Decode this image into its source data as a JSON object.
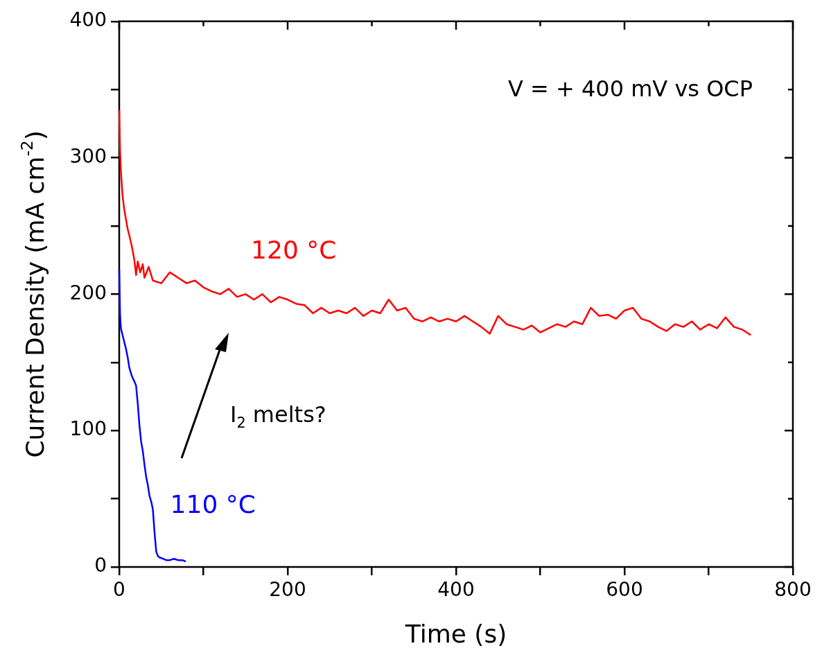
{
  "chart_data": {
    "type": "line",
    "xlabel": "Time (s)",
    "ylabel": "Current Density (mA cm$^{-2}$)",
    "xlim": [
      0,
      800
    ],
    "ylim": [
      0,
      400
    ],
    "xticks": [
      0,
      {
        "value": 100,
        "label": null
      },
      200,
      {
        "value": 300,
        "label": null
      },
      400,
      {
        "value": 500,
        "label": null
      },
      600,
      {
        "value": 700,
        "label": null
      },
      800
    ],
    "yticks": [
      0,
      {
        "value": 50,
        "label": null
      },
      100,
      {
        "value": 150,
        "label": null
      },
      200,
      {
        "value": 250,
        "label": null
      },
      300,
      {
        "value": 350,
        "label": null
      },
      400
    ],
    "grid": false,
    "legend": false,
    "marker": "none",
    "line_style": "solid",
    "series": [
      {
        "name": "120 °C",
        "color": "#ff0000",
        "x": [
          0,
          1,
          2,
          4,
          6,
          8,
          10,
          12,
          15,
          18,
          20,
          22,
          25,
          28,
          30,
          35,
          40,
          50,
          60,
          70,
          80,
          90,
          100,
          110,
          120,
          130,
          140,
          150,
          160,
          170,
          180,
          190,
          200,
          210,
          220,
          230,
          240,
          250,
          260,
          270,
          280,
          290,
          300,
          310,
          320,
          330,
          340,
          350,
          360,
          370,
          380,
          390,
          400,
          410,
          420,
          430,
          440,
          450,
          460,
          470,
          480,
          490,
          500,
          510,
          520,
          530,
          540,
          550,
          560,
          570,
          580,
          590,
          600,
          610,
          620,
          630,
          640,
          650,
          660,
          670,
          680,
          690,
          700,
          710,
          720,
          730,
          740,
          750
        ],
        "values": [
          335,
          305,
          290,
          272,
          262,
          255,
          248,
          243,
          235,
          225,
          214,
          224,
          216,
          222,
          212,
          220,
          210,
          208,
          216,
          212,
          208,
          210,
          205,
          202,
          200,
          204,
          198,
          200,
          196,
          200,
          194,
          198,
          196,
          193,
          192,
          186,
          190,
          186,
          188,
          186,
          190,
          184,
          188,
          186,
          196,
          188,
          190,
          182,
          180,
          183,
          180,
          182,
          180,
          184,
          180,
          176,
          171,
          184,
          178,
          176,
          174,
          177,
          172,
          175,
          178,
          176,
          180,
          178,
          190,
          184,
          185,
          182,
          188,
          190,
          182,
          180,
          176,
          173,
          178,
          176,
          180,
          174,
          178,
          175,
          183,
          176,
          174,
          170
        ]
      },
      {
        "name": "110 °C",
        "color": "#0000ff",
        "x": [
          0,
          1,
          2,
          4,
          6,
          8,
          10,
          12,
          15,
          18,
          20,
          22,
          24,
          26,
          28,
          30,
          32,
          34,
          36,
          38,
          40,
          42,
          44,
          46,
          48,
          52,
          56,
          60,
          65,
          70,
          75,
          79
        ],
        "values": [
          218,
          185,
          175,
          170,
          165,
          160,
          154,
          146,
          140,
          136,
          133,
          120,
          104,
          92,
          85,
          75,
          66,
          60,
          52,
          48,
          42,
          25,
          11,
          8,
          7,
          6,
          5,
          5,
          6,
          5,
          5,
          4
        ]
      }
    ],
    "annotations": [
      "V = + 400 mV vs OCP",
      "I$_{2}$ melts?"
    ]
  }
}
